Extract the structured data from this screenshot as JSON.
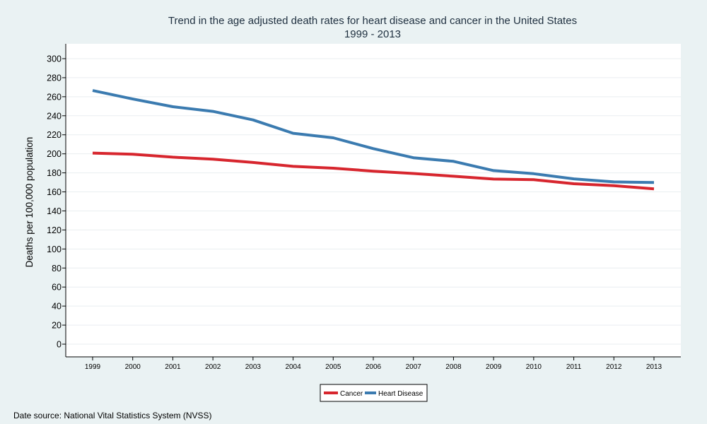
{
  "chart_data": {
    "type": "line",
    "title": "Trend in the age adjusted death rates for heart disease and cancer in the United States",
    "subtitle": "1999 - 2013",
    "xlabel": "",
    "ylabel": "Deaths per 100,000 population",
    "x": [
      "1999",
      "2000",
      "2001",
      "2002",
      "2003",
      "2004",
      "2005",
      "2006",
      "2007",
      "2008",
      "2009",
      "2010",
      "2011",
      "2012",
      "2013"
    ],
    "ylim": [
      0,
      300
    ],
    "yticks": [
      "0",
      "20",
      "40",
      "60",
      "80",
      "100",
      "120",
      "140",
      "160",
      "180",
      "200",
      "220",
      "240",
      "260",
      "280",
      "300"
    ],
    "grid": true,
    "legend_position": "bottom",
    "series": [
      {
        "name": "Cancer",
        "color": "#d7262e",
        "values": [
          200.8,
          199.6,
          196.5,
          194.3,
          190.9,
          186.8,
          184.9,
          181.8,
          179.3,
          176.4,
          173.5,
          172.8,
          168.6,
          166.5,
          163.2
        ]
      },
      {
        "name": "Heart Disease",
        "color": "#3b7bb0",
        "values": [
          266.5,
          257.6,
          249.5,
          244.6,
          235.6,
          221.6,
          216.8,
          205.5,
          195.9,
          192.1,
          182.4,
          179.1,
          173.7,
          170.5,
          169.8
        ]
      }
    ],
    "source_note": "Date source: National Vital Statistics System (NVSS)"
  }
}
